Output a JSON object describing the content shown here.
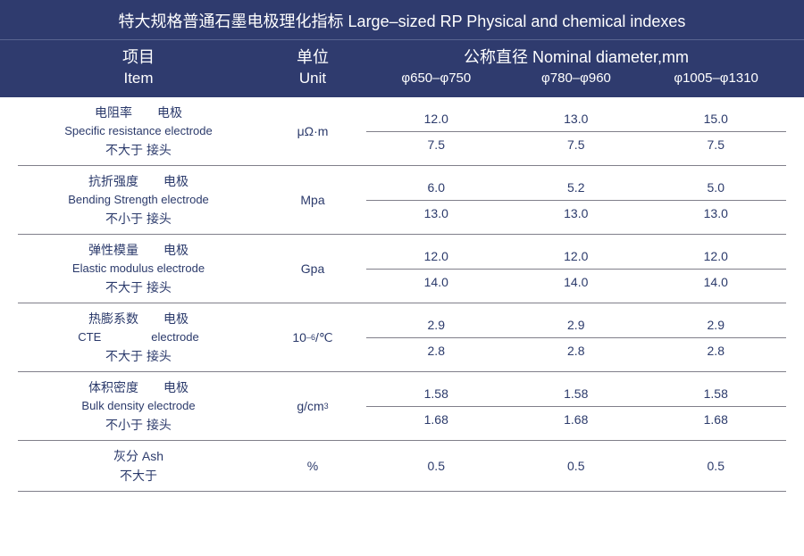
{
  "title": "特大规格普通石墨电极理化指标 Large–sized RP Physical and chemical indexes",
  "header": {
    "item_cn": "项目",
    "item_en": "Item",
    "unit_cn": "单位",
    "unit_en": "Unit",
    "diam_cn_en": "公称直径 Nominal diameter,mm",
    "diam_cols": [
      "φ650–φ750",
      "φ780–φ960",
      "φ1005–φ1310"
    ]
  },
  "rows": [
    {
      "cn_line1_left": "电阻率",
      "cn_line1_right": "电极",
      "en_line": "Specific resistance  electrode",
      "cn_line2_left": "不大于",
      "cn_line2_right": "接头",
      "unit": "μΩ·m",
      "vals1": [
        "12.0",
        "13.0",
        "15.0"
      ],
      "vals2": [
        "7.5",
        "7.5",
        "7.5"
      ]
    },
    {
      "cn_line1_left": "抗折强度",
      "cn_line1_right": "电极",
      "en_line": "Bending Strength electrode",
      "cn_line2_left": "不小于",
      "cn_line2_right": "接头",
      "unit": "Mpa",
      "vals1": [
        "6.0",
        "5.2",
        "5.0"
      ],
      "vals2": [
        "13.0",
        "13.0",
        "13.0"
      ]
    },
    {
      "cn_line1_left": "弹性模量",
      "cn_line1_right": "电极",
      "en_line": "Elastic modulus electrode",
      "cn_line2_left": "不大于",
      "cn_line2_right": "接头",
      "unit": "Gpa",
      "vals1": [
        "12.0",
        "12.0",
        "12.0"
      ],
      "vals2": [
        "14.0",
        "14.0",
        "14.0"
      ]
    },
    {
      "cn_line1_left": "热膨系数",
      "cn_line1_right": "电极",
      "en_line_left": "CTE",
      "en_line_right": "electrode",
      "cn_line2_left": "不大于",
      "cn_line2_right": "接头",
      "unit_html": "10<sup>–6</sup>/℃",
      "vals1": [
        "2.9",
        "2.9",
        "2.9"
      ],
      "vals2": [
        "2.8",
        "2.8",
        "2.8"
      ]
    },
    {
      "cn_line1_left": "体积密度",
      "cn_line1_right": "电极",
      "en_line": "Bulk density  electrode",
      "cn_line2_left": "不小于",
      "cn_line2_right": "接头",
      "unit_html": "g/cm<sup>3</sup>",
      "vals1": [
        "1.58",
        "1.58",
        "1.58"
      ],
      "vals2": [
        "1.68",
        "1.68",
        "1.68"
      ]
    },
    {
      "ash_cn": "灰分 Ash",
      "ash_cn2": "不大于",
      "unit": "%",
      "vals1": [
        "0.5",
        "0.5",
        "0.5"
      ]
    }
  ]
}
